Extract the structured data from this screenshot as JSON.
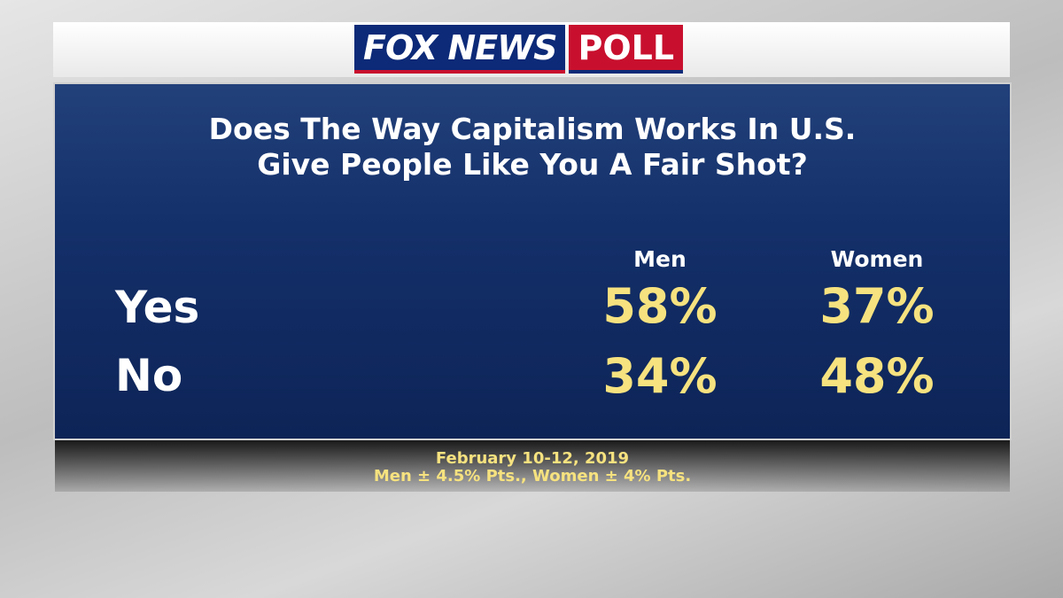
{
  "header": {
    "logo": "FOX NEWS",
    "logo_tag": "POLL"
  },
  "title": [
    "Does The Way Capitalism Works In U.S.",
    "Give People Like You A Fair Shot?"
  ],
  "table": {
    "columns": [
      "Men",
      "Women"
    ],
    "rows": [
      [
        "Yes",
        "58%",
        "37%"
      ],
      [
        "No",
        "34%",
        "48%"
      ]
    ]
  },
  "footnote": [
    "February 10-12, 2019",
    "Men ± 4.5% Pts., Women ± 4% Pts."
  ]
}
